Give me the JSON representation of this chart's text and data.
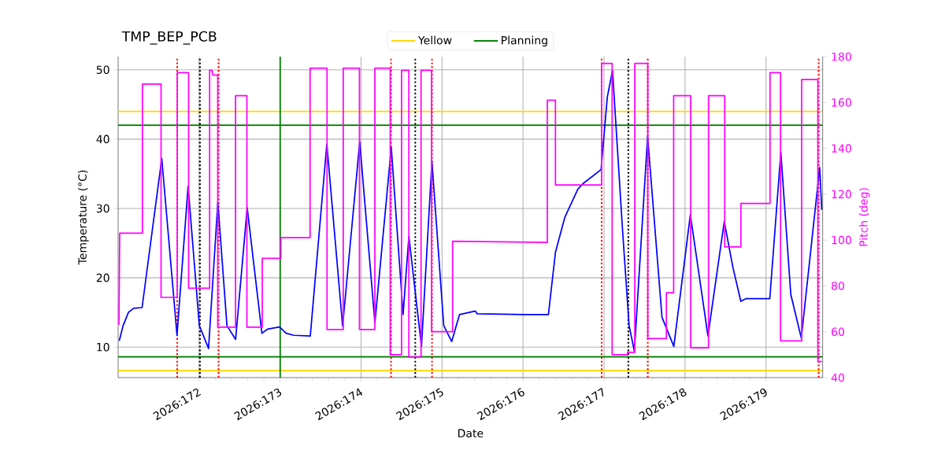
{
  "chart_data": {
    "type": "line",
    "title": "TMP_BEP_PCB",
    "xlabel": "Date",
    "ylabel": "Temperature (°C)",
    "y2label": "Pitch (deg)",
    "xlim": [
      "2026-06-20",
      "2026-06-28T16:48"
    ],
    "xticks": [
      {
        "value": "2026-06-21",
        "label": "2026:172"
      },
      {
        "value": "2026-06-22",
        "label": "2026:173"
      },
      {
        "value": "2026-06-23",
        "label": "2026:174"
      },
      {
        "value": "2026-06-24",
        "label": "2026:175"
      },
      {
        "value": "2026-06-25",
        "label": "2026:176"
      },
      {
        "value": "2026-06-26",
        "label": "2026:177"
      },
      {
        "value": "2026-06-27",
        "label": "2026:178"
      },
      {
        "value": "2026-06-28",
        "label": "2026:179"
      }
    ],
    "ylim": [
      5.6,
      51.9
    ],
    "yticks": [
      10,
      20,
      30,
      40,
      50
    ],
    "y2lim": [
      40,
      180
    ],
    "y2ticks": [
      40,
      60,
      80,
      100,
      120,
      140,
      160,
      180
    ],
    "grid": true,
    "legend": "top",
    "series": [
      {
        "color": "#0000ff",
        "x": [
          "2026-06-20T00:20",
          "2026-06-20T01:29",
          "2026-06-20T03:03",
          "2026-06-20T04:36",
          "2026-06-20T07:06",
          "2026-06-20T12:56",
          "2026-06-20T17:27",
          "2026-06-20T20:44",
          "2026-06-21T00:04",
          "2026-06-21T02:48",
          "2026-06-21T05:33",
          "2026-06-21T08:15",
          "2026-06-21T10:49",
          "2026-06-21T14:15",
          "2026-06-21T18:37",
          "2026-06-21T20:20",
          "2026-06-21T23:50",
          "2026-06-22T01:47",
          "2026-06-22T04:06",
          "2026-06-22T08:57",
          "2026-06-22T13:51",
          "2026-06-22T18:32",
          "2026-06-22T23:36",
          "2026-06-23T04:06",
          "2026-06-23T08:57",
          "2026-06-23T12:27",
          "2026-06-23T14:10",
          "2026-06-23T17:54",
          "2026-06-23T21:00",
          "2026-06-24T00:30",
          "2026-06-24T02:51",
          "2026-06-24T05:11",
          "2026-06-24T09:52",
          "2026-06-24T10:25",
          "2026-06-25T00:40",
          "2026-06-25T07:31",
          "2026-06-25T09:37",
          "2026-06-25T12:22",
          "2026-06-25T16:15",
          "2026-06-25T17:48",
          "2026-06-25T23:07",
          "2026-06-26T00:59",
          "2026-06-26T02:31",
          "2026-06-26T05:30",
          "2026-06-26T07:26",
          "2026-06-26T09:00",
          "2026-06-26T12:55",
          "2026-06-26T17:11",
          "2026-06-26T20:41",
          "2026-06-27T01:35",
          "2026-06-27T06:48",
          "2026-06-27T11:38",
          "2026-06-27T14:12",
          "2026-06-27T16:32",
          "2026-06-27T18:07",
          "2026-06-28T01:08",
          "2026-06-28T04:24",
          "2026-06-28T07:21",
          "2026-06-28T10:28",
          "2026-06-28T15:55",
          "2026-06-28T16:32"
        ],
        "values": [
          10.9,
          13.1,
          15.0,
          15.6,
          15.7,
          37.2,
          11.7,
          33.2,
          13.1,
          9.8,
          30.9,
          13.1,
          11.1,
          30.1,
          12.0,
          12.6,
          12.9,
          12.0,
          11.7,
          11.6,
          39.3,
          13.0,
          39.6,
          13.5,
          38.8,
          14.7,
          26.0,
          10.1,
          36.8,
          13.1,
          10.8,
          14.7,
          15.2,
          14.8,
          14.7,
          14.7,
          23.7,
          28.7,
          32.8,
          33.6,
          35.6,
          46.1,
          49.9,
          26.8,
          13.1,
          9.4,
          40.4,
          14.3,
          10.1,
          29.1,
          11.6,
          28.1,
          21.5,
          16.6,
          17.0,
          17.0,
          38.1,
          17.6,
          11.3,
          35.9,
          29.8
        ]
      },
      {
        "color": "#ff00ff",
        "axis": "y2",
        "x": [
          "2026-06-20T00:14",
          "2026-06-20T00:29",
          "2026-06-20T07:12",
          "2026-06-20T07:12",
          "2026-06-20T12:43",
          "2026-06-20T12:43",
          "2026-06-20T17:31",
          "2026-06-20T17:31",
          "2026-06-20T19:12",
          "2026-06-20T20:53",
          "2026-06-20T20:53",
          "2026-06-21T03:07",
          "2026-06-21T03:07",
          "2026-06-21T03:50",
          "2026-06-21T04:05",
          "2026-06-21T05:31",
          "2026-06-21T05:31",
          "2026-06-21T10:48",
          "2026-06-21T10:48",
          "2026-06-21T14:10",
          "2026-06-21T14:10",
          "2026-06-21T18:43",
          "2026-06-21T18:43",
          "2026-06-22T00:14",
          "2026-06-22T00:14",
          "2026-06-22T08:53",
          "2026-06-22T08:53",
          "2026-06-22T13:55",
          "2026-06-22T13:55",
          "2026-06-22T18:43",
          "2026-06-22T18:43",
          "2026-06-22T23:31",
          "2026-06-22T23:31",
          "2026-06-23T04:05",
          "2026-06-23T04:05",
          "2026-06-23T08:38",
          "2026-06-23T08:38",
          "2026-06-23T12:00",
          "2026-06-23T12:00",
          "2026-06-23T14:10",
          "2026-06-23T14:10",
          "2026-06-23T17:46",
          "2026-06-23T17:46",
          "2026-06-23T20:53",
          "2026-06-23T20:53",
          "2026-06-24T03:07",
          "2026-06-24T03:07",
          "2026-06-25T07:12",
          "2026-06-25T07:12",
          "2026-06-25T09:36",
          "2026-06-25T09:36",
          "2026-06-25T23:17",
          "2026-06-25T23:17",
          "2026-06-26T02:24",
          "2026-06-26T02:24",
          "2026-06-26T06:58",
          "2026-06-26T06:58",
          "2026-06-26T09:07",
          "2026-06-26T09:07",
          "2026-06-26T12:58",
          "2026-06-26T12:58",
          "2026-06-26T18:29",
          "2026-06-26T18:29",
          "2026-06-26T20:38",
          "2026-06-26T20:38",
          "2026-06-27T01:41",
          "2026-06-27T01:41",
          "2026-06-27T06:58",
          "2026-06-27T06:58",
          "2026-06-27T11:46",
          "2026-06-27T11:46",
          "2026-06-27T16:34",
          "2026-06-27T16:34",
          "2026-06-28T01:12",
          "2026-06-28T01:12",
          "2026-06-28T04:19",
          "2026-06-28T04:19",
          "2026-06-28T10:34",
          "2026-06-28T10:34",
          "2026-06-28T15:22",
          "2026-06-28T15:22",
          "2026-06-28T16:34"
        ],
        "values": [
          63,
          103,
          103,
          168,
          168,
          75,
          75,
          173,
          173,
          173,
          79,
          79,
          174,
          174,
          172,
          172,
          62,
          62,
          163,
          163,
          62,
          62,
          92,
          92,
          101,
          101,
          175,
          175,
          61,
          61,
          175,
          175,
          61,
          61,
          175,
          175,
          50,
          50,
          174,
          174,
          49,
          49,
          174,
          174,
          60,
          60,
          99.5,
          99,
          161,
          161,
          124,
          124,
          177,
          177,
          50,
          50,
          51,
          51,
          177,
          177,
          57,
          57,
          77,
          77,
          163,
          163,
          53,
          53,
          163,
          163,
          97,
          97,
          116,
          116,
          173,
          173,
          56,
          56,
          170,
          170,
          47,
          47
        ]
      }
    ],
    "ref_lines": [
      {
        "axis": "y",
        "value": 44,
        "label": "Yellow",
        "color": "#ffd700",
        "line_style": "solid"
      },
      {
        "axis": "y",
        "value": 6.6,
        "color": "#ffd700",
        "line_style": "solid"
      },
      {
        "axis": "y",
        "value": 42,
        "label": "Planning",
        "color": "#008000",
        "line_style": "solid"
      },
      {
        "axis": "y",
        "value": 8.6,
        "color": "#008000",
        "line_style": "solid"
      },
      {
        "axis": "x",
        "value": "2026-06-22",
        "color": "#008000",
        "line_style": "solid"
      },
      {
        "axis": "x",
        "value": "2026-06-20T17:31",
        "color": "#ff0000",
        "line_style": "dotted"
      },
      {
        "axis": "x",
        "value": "2026-06-21T05:46",
        "color": "#ff0000",
        "line_style": "dotted"
      },
      {
        "axis": "x",
        "value": "2026-06-23T08:53",
        "color": "#ff0000",
        "line_style": "dotted"
      },
      {
        "axis": "x",
        "value": "2026-06-23T21:00",
        "color": "#ff0000",
        "line_style": "dotted"
      },
      {
        "axis": "x",
        "value": "2026-06-25T23:17",
        "color": "#ff0000",
        "line_style": "dotted"
      },
      {
        "axis": "x",
        "value": "2026-06-26T12:58",
        "color": "#ff0000",
        "line_style": "dotted"
      },
      {
        "axis": "x",
        "value": "2026-06-28T15:36",
        "color": "#ff0000",
        "line_style": "dotted"
      },
      {
        "axis": "x",
        "value": "2026-06-21T00:14",
        "color": "#000000",
        "line_style": "dotted"
      },
      {
        "axis": "x",
        "value": "2026-06-23T16:05",
        "color": "#000000",
        "line_style": "dotted"
      },
      {
        "axis": "x",
        "value": "2026-06-26T07:12",
        "color": "#000000",
        "line_style": "dotted"
      }
    ]
  }
}
